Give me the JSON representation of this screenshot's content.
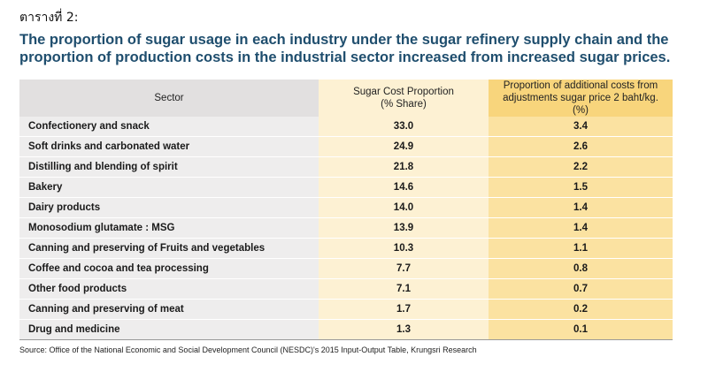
{
  "table_label": "ตารางที่ 2:",
  "title": "The proportion of sugar usage in each industry under the sugar refinery supply chain and the proportion of production costs in the industrial sector increased from increased sugar prices.",
  "headers": {
    "sector": "Sector",
    "share_line1": "Sugar Cost Proportion",
    "share_line2": "(% Share)",
    "added_line1": "Proportion of additional costs from",
    "added_line2": "adjustments sugar price 2 baht/kg. (%)"
  },
  "rows": [
    {
      "sector": "Confectionery and snack",
      "share": "33.0",
      "added": "3.4"
    },
    {
      "sector": "Soft drinks and carbonated water",
      "share": "24.9",
      "added": "2.6"
    },
    {
      "sector": "Distilling and blending of spirit",
      "share": "21.8",
      "added": "2.2"
    },
    {
      "sector": "Bakery",
      "share": "14.6",
      "added": "1.5"
    },
    {
      "sector": "Dairy products",
      "share": "14.0",
      "added": "1.4"
    },
    {
      "sector": "Monosodium glutamate : MSG",
      "share": "13.9",
      "added": "1.4"
    },
    {
      "sector": "Canning and preserving of Fruits and vegetables",
      "share": "10.3",
      "added": "1.1"
    },
    {
      "sector": "Coffee and cocoa and tea processing",
      "share": "7.7",
      "added": "0.8"
    },
    {
      "sector": "Other food products",
      "share": "7.1",
      "added": "0.7"
    },
    {
      "sector": "Canning and preserving of meat",
      "share": "1.7",
      "added": "0.2"
    },
    {
      "sector": "Drug and medicine",
      "share": "1.3",
      "added": "0.1"
    }
  ],
  "source": "Source: Office of the National Economic and Social Development Council (NESDC)'s 2015 Input-Output Table, Krungsri Research",
  "colors": {
    "title": "#1f4e6e",
    "sector_header_bg": "#e2e0e0",
    "sector_cell_bg": "#eeeded",
    "share_bg": "#fdf1d3",
    "added_header_bg": "#f8d57c",
    "added_cell_bg": "#fbe2a1"
  }
}
